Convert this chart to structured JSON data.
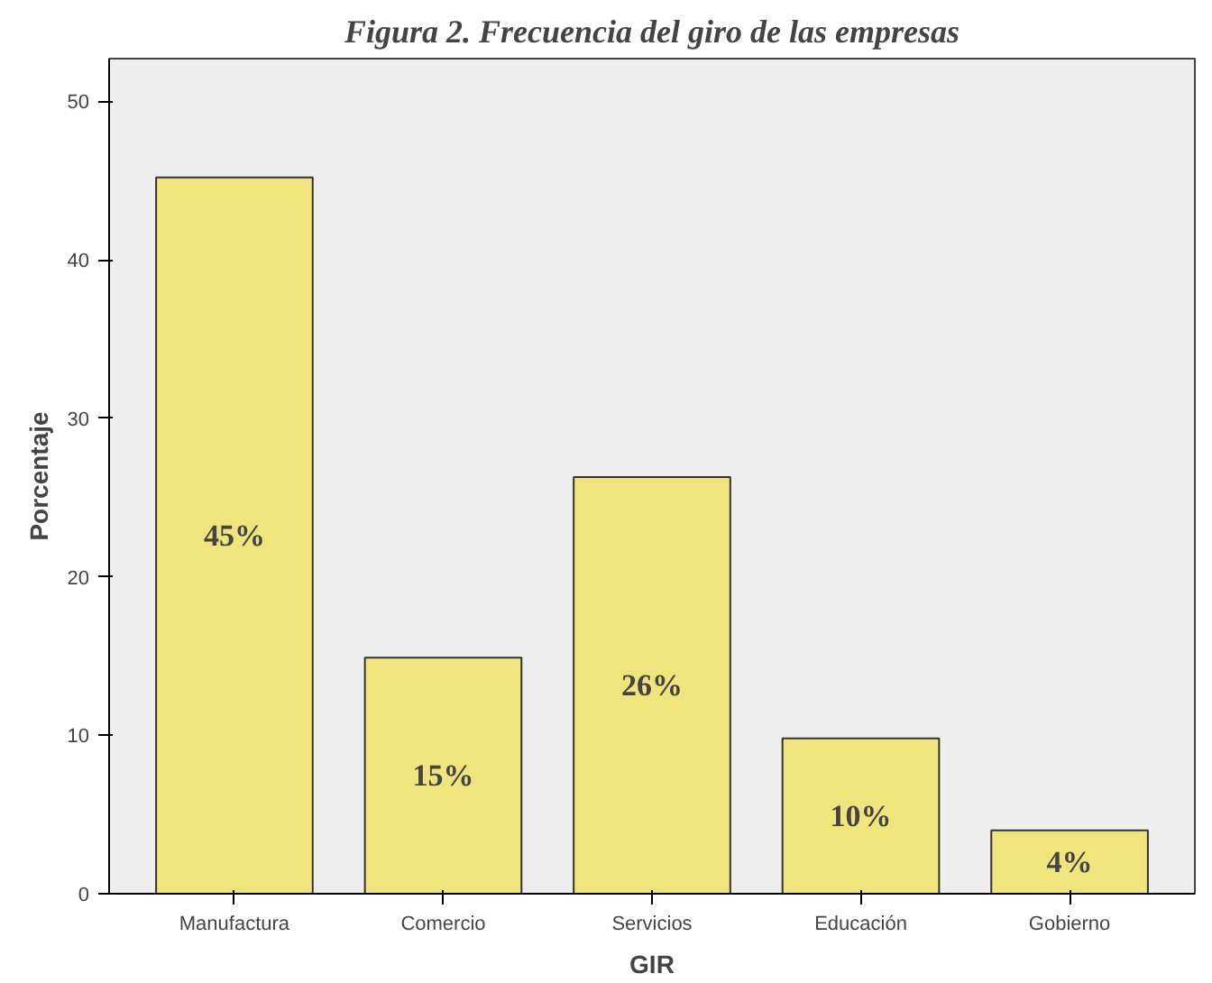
{
  "chart_data": {
    "type": "bar",
    "title": "Figura 2. Frecuencia del giro de las empresas",
    "xlabel": "GIR",
    "ylabel": "Porcentaje",
    "categories": [
      "Manufactura",
      "Comercio",
      "Servicios",
      "Educación",
      "Gobierno"
    ],
    "values": [
      45.2,
      14.9,
      26.3,
      9.8,
      4.0
    ],
    "value_labels": [
      "45%",
      "15%",
      "26%",
      "10%",
      "4%"
    ],
    "color": "#f0e47c",
    "ylim": [
      0,
      52.7
    ],
    "yticks": [
      0,
      10,
      20,
      30,
      40,
      50
    ],
    "grid": false
  }
}
